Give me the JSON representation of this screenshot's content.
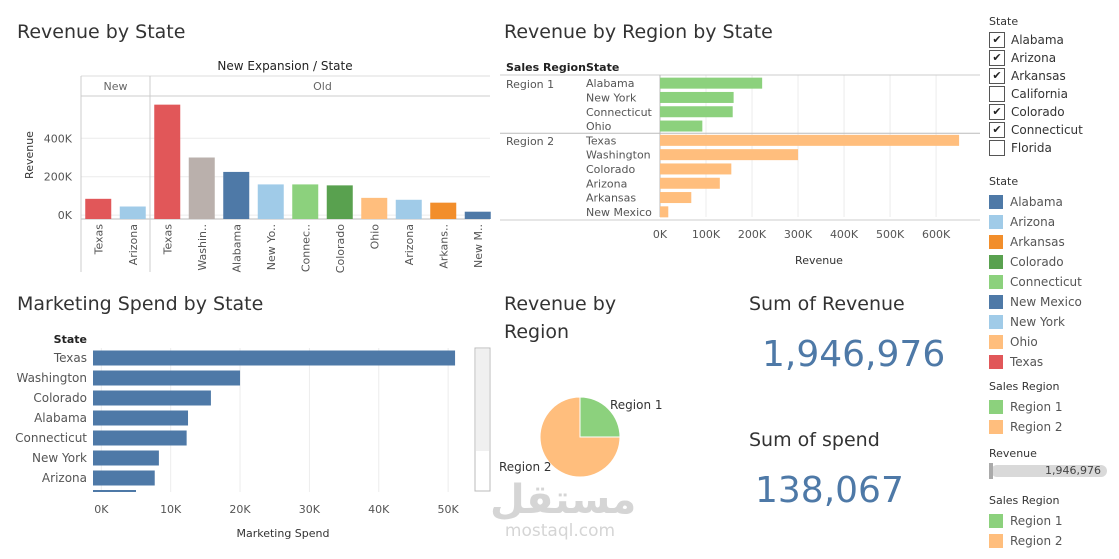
{
  "titles": {
    "revenue_by_state": "Revenue by State",
    "revenue_by_region_by_state": "Revenue by Region by State",
    "marketing_spend_by_state": "Marketing Spend by State",
    "revenue_by_region_line1": "Revenue by",
    "revenue_by_region_line2": "Region",
    "sum_of_revenue": "Sum of Revenue",
    "sum_of_spend": "Sum of spend"
  },
  "kpis": {
    "revenue": "1,946,976",
    "spend": "138,067"
  },
  "filters": {
    "state_filter_title": "State",
    "state_items": [
      {
        "label": "Alabama",
        "checked": true
      },
      {
        "label": "Arizona",
        "checked": true
      },
      {
        "label": "Arkansas",
        "checked": true
      },
      {
        "label": "California",
        "checked": false
      },
      {
        "label": "Colorado",
        "checked": true
      },
      {
        "label": "Connecticut",
        "checked": true
      },
      {
        "label": "Florida",
        "checked": false
      }
    ],
    "state_legend_title": "State",
    "state_legend": [
      {
        "label": "Alabama",
        "color": "#4e79a7"
      },
      {
        "label": "Arizona",
        "color": "#a0cbe8"
      },
      {
        "label": "Arkansas",
        "color": "#f28e2b"
      },
      {
        "label": "Colorado",
        "color": "#59a14f"
      },
      {
        "label": "Connecticut",
        "color": "#8cd17d"
      },
      {
        "label": "New Mexico",
        "color": "#4e79a7"
      },
      {
        "label": "New York",
        "color": "#a0cbe8"
      },
      {
        "label": "Ohio",
        "color": "#ffbe7d"
      },
      {
        "label": "Texas",
        "color": "#e15759"
      }
    ],
    "sales_region_title_1": "Sales Region",
    "sales_region_1": [
      {
        "label": "Region 1",
        "color": "#8cd17d"
      },
      {
        "label": "Region 2",
        "color": "#ffbe7d"
      }
    ],
    "revenue_slider_title": "Revenue",
    "revenue_slider_value": "1,946,976",
    "sales_region_title_2": "Sales Region",
    "sales_region_2": [
      {
        "label": "Region 1",
        "color": "#8cd17d"
      },
      {
        "label": "Region 2",
        "color": "#ffbe7d"
      }
    ]
  },
  "watermark": {
    "arabic": "مستقل",
    "latin": "mostaql.com"
  },
  "chart_data": [
    {
      "type": "bar",
      "title": "Revenue by State",
      "header": "New Expansion / State",
      "ylabel": "Revenue",
      "groups": [
        {
          "name": "New",
          "categories": [
            "Texas",
            "Arizona"
          ],
          "values": [
            85000,
            45000
          ],
          "colors": [
            "#e15759",
            "#a0cbe8"
          ]
        },
        {
          "name": "Old",
          "categories": [
            "Texas",
            "Washin..",
            "Alabama",
            "New Yo..",
            "Connec..",
            "Colorado",
            "Ohio",
            "Arizona",
            "Arkans..",
            "New M.."
          ],
          "values": [
            575000,
            300000,
            225000,
            160000,
            160000,
            155000,
            90000,
            80000,
            65000,
            18000
          ],
          "colors": [
            "#e15759",
            "#bab0ac",
            "#4e79a7",
            "#a0cbe8",
            "#8cd17d",
            "#59a14f",
            "#ffbe7d",
            "#a0cbe8",
            "#f28e2b",
            "#4e79a7"
          ]
        }
      ],
      "yticks": [
        {
          "v": 0,
          "label": "0K"
        },
        {
          "v": 200000,
          "label": "200K"
        },
        {
          "v": 400000,
          "label": "400K"
        }
      ],
      "ylim": [
        -20000,
        620000
      ]
    },
    {
      "type": "bar",
      "orientation": "horizontal",
      "title": "Revenue by Region by State",
      "row_headers": [
        "Sales Region",
        "State"
      ],
      "xlabel": "Revenue",
      "regions": [
        {
          "name": "Region 1",
          "color": "#8cd17d",
          "states": [
            "Alabama",
            "New York",
            "Connecticut",
            "Ohio"
          ],
          "values": [
            222000,
            160000,
            158000,
            92000
          ]
        },
        {
          "name": "Region 2",
          "color": "#ffbe7d",
          "states": [
            "Texas",
            "Washington",
            "Colorado",
            "Arizona",
            "Arkansas",
            "New Mexico"
          ],
          "values": [
            650000,
            300000,
            155000,
            130000,
            68000,
            18000
          ]
        }
      ],
      "xticks": [
        {
          "v": 0,
          "label": "0K"
        },
        {
          "v": 100000,
          "label": "100K"
        },
        {
          "v": 200000,
          "label": "200K"
        },
        {
          "v": 300000,
          "label": "300K"
        },
        {
          "v": 400000,
          "label": "400K"
        },
        {
          "v": 500000,
          "label": "500K"
        },
        {
          "v": 600000,
          "label": "600K"
        }
      ],
      "xlim": [
        0,
        665000
      ]
    },
    {
      "type": "bar",
      "orientation": "horizontal",
      "title": "Marketing Spend by State",
      "row_header": "State",
      "xlabel": "Marketing Spend",
      "color": "#4e79a7",
      "categories": [
        "Texas",
        "Washington",
        "Colorado",
        "Alabama",
        "Connecticut",
        "New York",
        "Arizona"
      ],
      "values": [
        51000,
        20000,
        15800,
        12500,
        12300,
        8300,
        7700
      ],
      "partial_bar_value": 5000,
      "xticks": [
        {
          "v": 0,
          "label": "0K"
        },
        {
          "v": 10000,
          "label": "10K"
        },
        {
          "v": 20000,
          "label": "20K"
        },
        {
          "v": 30000,
          "label": "30K"
        },
        {
          "v": 40000,
          "label": "40K"
        },
        {
          "v": 50000,
          "label": "50K"
        }
      ],
      "xlim": [
        -1200,
        52000
      ]
    },
    {
      "type": "pie",
      "title": "Revenue by Region",
      "slices": [
        {
          "label": "Region 1",
          "value": 25,
          "color": "#8cd17d"
        },
        {
          "label": "Region 2",
          "value": 75,
          "color": "#ffbe7d"
        }
      ]
    }
  ]
}
